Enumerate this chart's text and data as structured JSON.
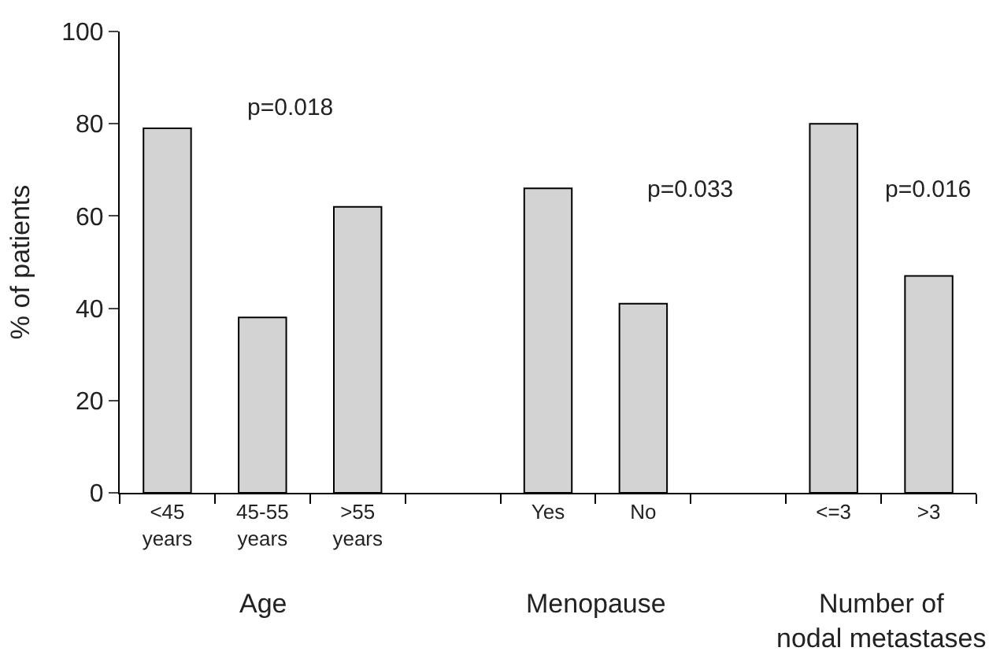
{
  "chart_data": {
    "type": "bar",
    "ylabel": "% of patients",
    "categories": [
      "<45\nyears",
      "45-55\nyears",
      ">55\nyears",
      null,
      "Yes",
      "No",
      null,
      "<=3",
      ">3"
    ],
    "values": [
      79,
      38,
      62,
      null,
      66,
      41,
      null,
      80,
      47
    ],
    "color": "#d3d3d3",
    "ylim": [
      0,
      100
    ],
    "yticks": [
      0,
      20,
      40,
      60,
      80,
      100
    ],
    "legend": false,
    "annotations": [
      "p=0.018",
      "p=0.033",
      "p=0.016",
      "Age",
      "Menopause",
      "Number of\nnodal metastases"
    ]
  }
}
